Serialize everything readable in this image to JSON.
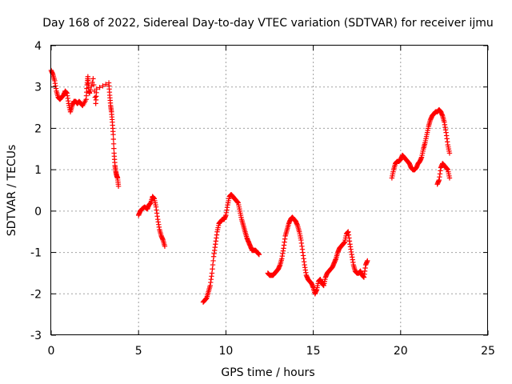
{
  "chart_data": {
    "type": "scatter",
    "title": "Day 168 of 2022, Sidereal Day-to-day VTEC variation (SDTVAR) for receiver ijmu",
    "xlabel": "GPS time / hours",
    "ylabel": "SDTVAR / TECUs",
    "xlim": [
      0,
      25
    ],
    "ylim": [
      -3,
      4
    ],
    "xticks": [
      "0",
      "5",
      "10",
      "15",
      "20",
      "25"
    ],
    "yticks": [
      "-3",
      "-2",
      "-1",
      "0",
      "1",
      "2",
      "3",
      "4"
    ],
    "grid": true,
    "marker": "+",
    "color": "#ff0000",
    "series": [
      {
        "name": "SDTVAR",
        "segments": [
          [
            [
              0.0,
              3.4
            ],
            [
              0.1,
              3.3
            ],
            [
              0.2,
              3.15
            ],
            [
              0.3,
              2.9
            ],
            [
              0.4,
              2.75
            ],
            [
              0.5,
              2.7
            ],
            [
              0.6,
              2.75
            ],
            [
              0.7,
              2.8
            ],
            [
              0.8,
              2.9
            ],
            [
              0.9,
              2.85
            ],
            [
              1.0,
              2.6
            ],
            [
              1.1,
              2.4
            ],
            [
              1.2,
              2.55
            ],
            [
              1.3,
              2.65
            ],
            [
              1.4,
              2.65
            ],
            [
              1.5,
              2.6
            ],
            [
              1.6,
              2.65
            ],
            [
              1.7,
              2.6
            ],
            [
              1.8,
              2.55
            ],
            [
              2.0,
              2.7
            ],
            [
              2.05,
              3.05
            ],
            [
              2.1,
              3.25
            ],
            [
              2.15,
              2.9
            ],
            [
              2.2,
              2.85
            ],
            [
              2.4,
              3.2
            ],
            [
              2.55,
              2.6
            ],
            [
              2.6,
              2.95
            ],
            [
              3.3,
              3.1
            ],
            [
              3.35,
              2.8
            ],
            [
              3.4,
              2.55
            ],
            [
              3.45,
              2.4
            ],
            [
              3.5,
              2.15
            ],
            [
              3.55,
              1.85
            ],
            [
              3.6,
              1.4
            ],
            [
              3.65,
              1.1
            ],
            [
              3.7,
              0.95
            ],
            [
              3.75,
              0.85
            ],
            [
              3.8,
              0.8
            ],
            [
              3.85,
              0.6
            ]
          ],
          [
            [
              5.0,
              -0.1
            ],
            [
              5.1,
              0.0
            ],
            [
              5.2,
              0.05
            ],
            [
              5.35,
              0.1
            ],
            [
              5.5,
              0.05
            ],
            [
              5.6,
              0.15
            ],
            [
              5.7,
              0.2
            ],
            [
              5.8,
              0.35
            ],
            [
              5.9,
              0.3
            ],
            [
              6.0,
              0.1
            ],
            [
              6.1,
              -0.2
            ],
            [
              6.2,
              -0.45
            ],
            [
              6.3,
              -0.6
            ],
            [
              6.4,
              -0.7
            ],
            [
              6.5,
              -0.85
            ]
          ],
          [
            [
              8.7,
              -2.2
            ],
            [
              8.8,
              -2.15
            ],
            [
              8.9,
              -2.1
            ],
            [
              9.0,
              -1.95
            ],
            [
              9.1,
              -1.8
            ],
            [
              9.2,
              -1.5
            ],
            [
              9.3,
              -1.1
            ],
            [
              9.4,
              -0.8
            ],
            [
              9.5,
              -0.5
            ],
            [
              9.6,
              -0.3
            ],
            [
              9.7,
              -0.25
            ],
            [
              9.8,
              -0.2
            ],
            [
              9.9,
              -0.2
            ],
            [
              10.0,
              -0.1
            ],
            [
              10.1,
              0.15
            ],
            [
              10.2,
              0.35
            ],
            [
              10.3,
              0.4
            ],
            [
              10.4,
              0.35
            ],
            [
              10.5,
              0.3
            ],
            [
              10.6,
              0.25
            ],
            [
              10.7,
              0.2
            ],
            [
              10.8,
              0.0
            ],
            [
              10.9,
              -0.2
            ],
            [
              11.0,
              -0.35
            ],
            [
              11.1,
              -0.5
            ],
            [
              11.2,
              -0.65
            ],
            [
              11.3,
              -0.75
            ],
            [
              11.4,
              -0.85
            ],
            [
              11.5,
              -0.95
            ],
            [
              11.6,
              -0.95
            ],
            [
              11.7,
              -0.95
            ],
            [
              11.8,
              -1.0
            ],
            [
              11.9,
              -1.05
            ]
          ],
          [
            [
              12.4,
              -1.5
            ],
            [
              12.5,
              -1.55
            ],
            [
              12.6,
              -1.55
            ],
            [
              12.7,
              -1.55
            ],
            [
              12.8,
              -1.5
            ],
            [
              12.9,
              -1.45
            ],
            [
              13.0,
              -1.4
            ],
            [
              13.1,
              -1.3
            ],
            [
              13.2,
              -1.15
            ],
            [
              13.3,
              -0.9
            ],
            [
              13.4,
              -0.6
            ],
            [
              13.5,
              -0.45
            ],
            [
              13.6,
              -0.3
            ],
            [
              13.7,
              -0.2
            ],
            [
              13.8,
              -0.15
            ],
            [
              13.9,
              -0.2
            ],
            [
              14.0,
              -0.25
            ],
            [
              14.1,
              -0.35
            ],
            [
              14.2,
              -0.5
            ],
            [
              14.3,
              -0.7
            ],
            [
              14.4,
              -1.0
            ],
            [
              14.5,
              -1.3
            ],
            [
              14.6,
              -1.55
            ],
            [
              14.7,
              -1.65
            ],
            [
              14.8,
              -1.7
            ],
            [
              14.9,
              -1.75
            ],
            [
              15.0,
              -1.85
            ],
            [
              15.1,
              -2.0
            ],
            [
              15.2,
              -1.9
            ],
            [
              15.3,
              -1.7
            ],
            [
              15.4,
              -1.65
            ],
            [
              15.5,
              -1.75
            ],
            [
              15.6,
              -1.8
            ],
            [
              15.7,
              -1.6
            ],
            [
              15.8,
              -1.5
            ],
            [
              15.9,
              -1.45
            ],
            [
              16.0,
              -1.4
            ],
            [
              16.1,
              -1.35
            ],
            [
              16.2,
              -1.25
            ],
            [
              16.3,
              -1.15
            ],
            [
              16.4,
              -1.0
            ],
            [
              16.5,
              -0.9
            ],
            [
              16.6,
              -0.85
            ],
            [
              16.7,
              -0.8
            ],
            [
              16.8,
              -0.75
            ],
            [
              16.9,
              -0.55
            ],
            [
              17.0,
              -0.5
            ],
            [
              17.1,
              -0.8
            ],
            [
              17.2,
              -1.05
            ],
            [
              17.3,
              -1.3
            ],
            [
              17.4,
              -1.45
            ],
            [
              17.5,
              -1.5
            ],
            [
              17.6,
              -1.5
            ],
            [
              17.7,
              -1.45
            ],
            [
              17.8,
              -1.55
            ],
            [
              17.9,
              -1.6
            ],
            [
              18.0,
              -1.3
            ],
            [
              18.1,
              -1.2
            ]
          ],
          [
            [
              19.5,
              0.8
            ],
            [
              19.6,
              1.0
            ],
            [
              19.7,
              1.15
            ],
            [
              19.8,
              1.2
            ],
            [
              19.9,
              1.2
            ],
            [
              20.0,
              1.25
            ],
            [
              20.1,
              1.35
            ],
            [
              20.2,
              1.3
            ],
            [
              20.3,
              1.25
            ],
            [
              20.4,
              1.2
            ],
            [
              20.5,
              1.15
            ],
            [
              20.6,
              1.05
            ],
            [
              20.7,
              1.0
            ],
            [
              20.8,
              1.0
            ],
            [
              20.9,
              1.05
            ],
            [
              21.0,
              1.15
            ],
            [
              21.1,
              1.2
            ],
            [
              21.2,
              1.3
            ],
            [
              21.3,
              1.5
            ],
            [
              21.4,
              1.65
            ],
            [
              21.5,
              1.85
            ],
            [
              21.6,
              2.05
            ],
            [
              21.7,
              2.2
            ],
            [
              21.8,
              2.3
            ],
            [
              21.9,
              2.35
            ],
            [
              22.0,
              2.4
            ],
            [
              22.1,
              2.4
            ],
            [
              22.2,
              2.45
            ],
            [
              22.3,
              2.4
            ],
            [
              22.4,
              2.3
            ],
            [
              22.5,
              2.15
            ],
            [
              22.6,
              1.9
            ],
            [
              22.7,
              1.6
            ],
            [
              22.8,
              1.4
            ]
          ],
          [
            [
              22.1,
              0.65
            ],
            [
              22.2,
              0.75
            ],
            [
              22.3,
              1.05
            ],
            [
              22.4,
              1.15
            ],
            [
              22.5,
              1.1
            ],
            [
              22.6,
              1.05
            ],
            [
              22.7,
              1.0
            ],
            [
              22.8,
              0.8
            ]
          ]
        ]
      }
    ]
  }
}
